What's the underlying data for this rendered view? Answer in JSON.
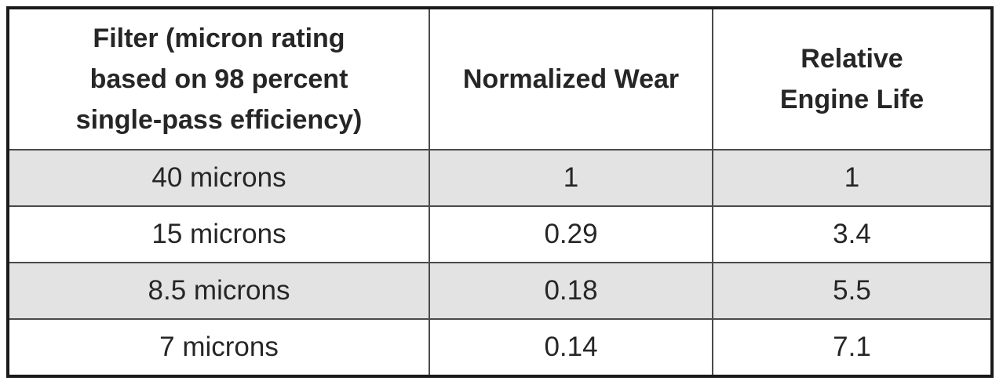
{
  "table": {
    "headers": [
      "Filter (micron rating based on 98 percent single-pass efficiency)",
      "Normalized Wear",
      "Relative Engine Life"
    ],
    "header_lines": {
      "col1": [
        "Filter (micron rating",
        "based on 98 percent",
        "single-pass efficiency)"
      ],
      "col3": [
        "Relative",
        "Engine Life"
      ]
    },
    "rows": [
      {
        "filter": "40 microns",
        "normalized_wear": "1",
        "relative_engine_life": "1"
      },
      {
        "filter": "15 microns",
        "normalized_wear": "0.29",
        "relative_engine_life": "3.4"
      },
      {
        "filter": "8.5 microns",
        "normalized_wear": "0.18",
        "relative_engine_life": "5.5"
      },
      {
        "filter": "7 microns",
        "normalized_wear": "0.14",
        "relative_engine_life": "7.1"
      }
    ],
    "colors": {
      "shaded_row": "#e3e3e3",
      "plain_row": "#ffffff",
      "border": "#1a1a1a",
      "text": "#262626"
    }
  }
}
